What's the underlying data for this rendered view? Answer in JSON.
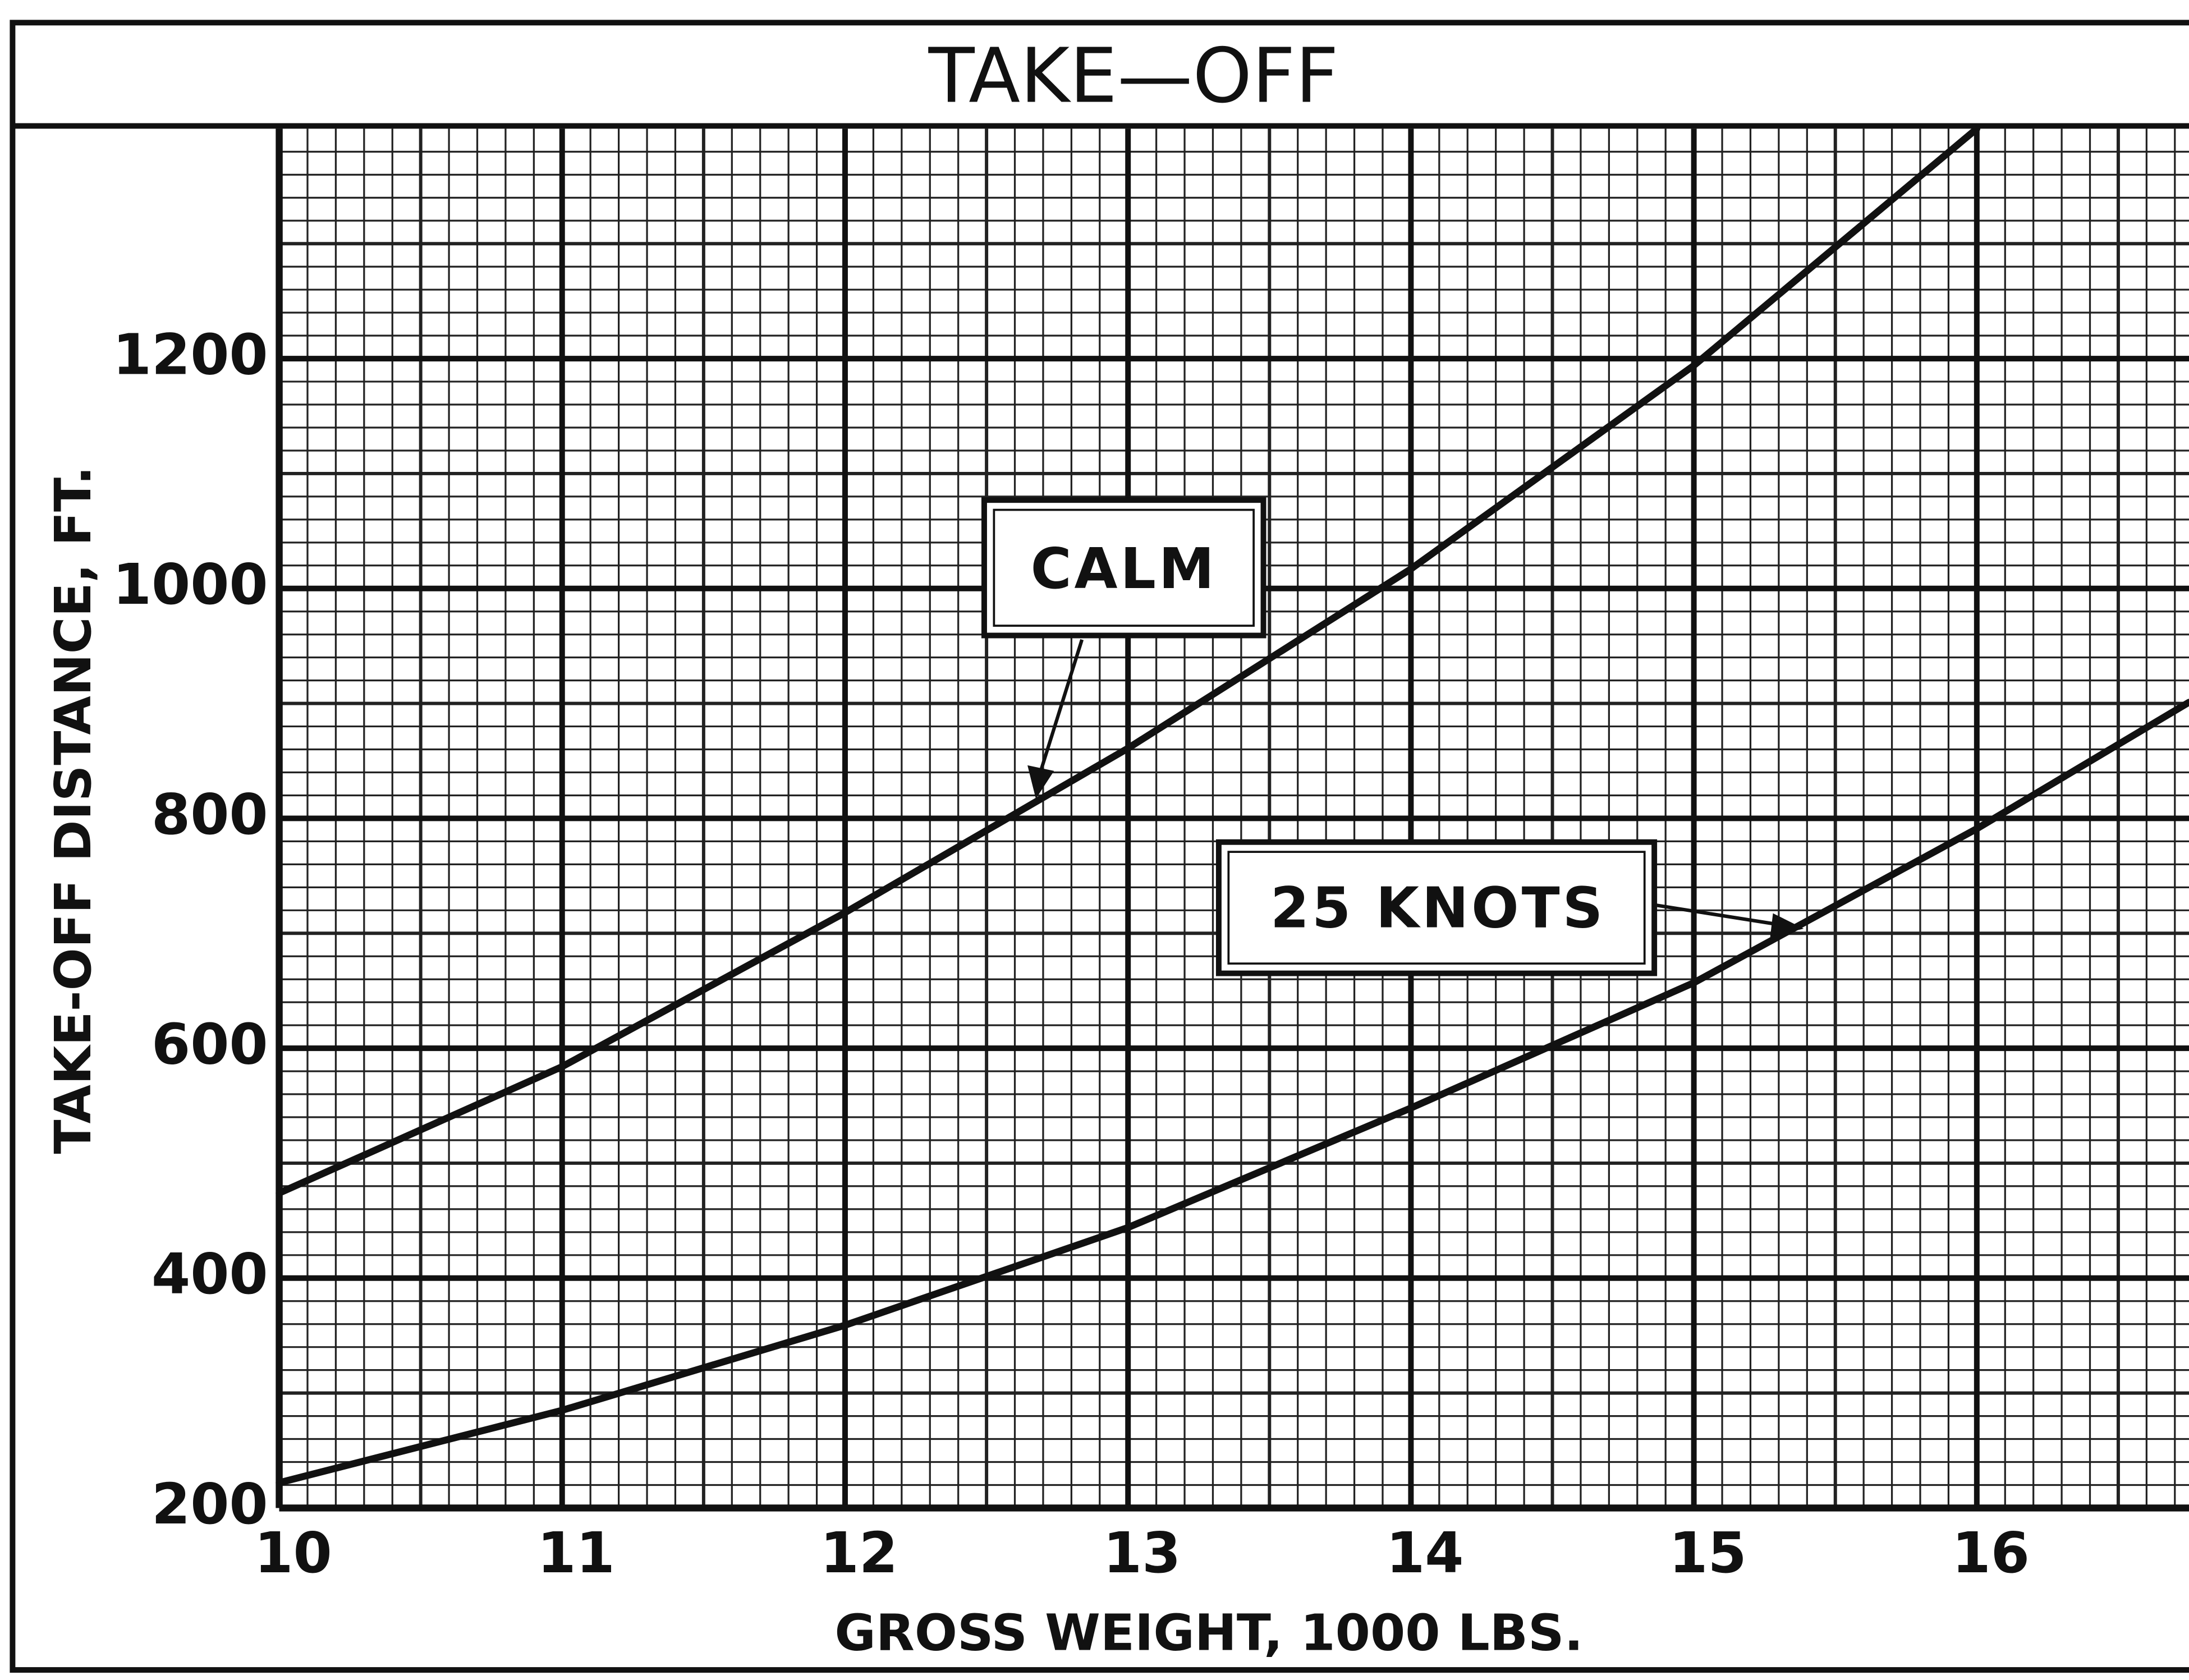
{
  "chart_data": {
    "type": "line",
    "title": "TAKE—OFF",
    "x_label": "GROSS WEIGHT, 1000 LBS.",
    "y_label": "TAKE-OFF DISTANCE, FT.",
    "x": [
      10,
      11,
      12,
      13,
      14,
      15,
      16,
      16.75
    ],
    "series": [
      {
        "name": "CALM",
        "color": "#111111",
        "values": [
          474,
          584,
          718,
          861,
          1017,
          1194,
          1400,
          null
        ]
      },
      {
        "name": "25 KNOTS",
        "color": "#111111",
        "values": [
          222,
          285,
          359,
          444,
          548,
          657,
          791,
          901
        ]
      }
    ],
    "xlim": [
      10,
      16.75
    ],
    "xticks": [
      10,
      11,
      12,
      13,
      14,
      15,
      16
    ],
    "ylim": [
      200,
      1400
    ],
    "yticks": [
      200,
      400,
      600,
      800,
      1000,
      1200
    ],
    "grid": true
  }
}
